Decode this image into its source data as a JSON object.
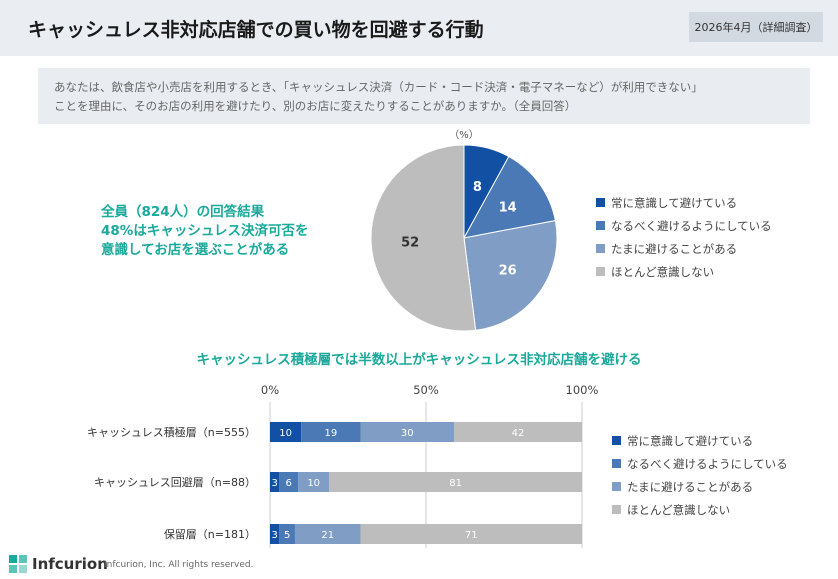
{
  "header": {
    "title": "キャッシュレス非対応店舗での買い物を回避する行動",
    "date_badge": "2026年4月（詳細調査）"
  },
  "question": {
    "line1": "あなたは、飲食店や小売店を利用するとき、「キャッシュレス決済（カード・コード決済・電子マネーなど）が利用できない」",
    "line2": "ことを理由に、そのお店の利用を避けたり、別のお店に変えたりすることがありますか。（全員回答）"
  },
  "summary": {
    "line1": "全員（824人）の回答結果",
    "line2": "48%はキャッシュレス決済可否を",
    "line3": "意識してお店を選ぶことがある"
  },
  "colors": {
    "accent": "#1aa99a",
    "series": [
      "#1150a3",
      "#4a79b5",
      "#7f9dc5",
      "#bdbdbd"
    ]
  },
  "chart_data": [
    {
      "type": "pie",
      "unit_label": "（%）",
      "labels": [
        "常に意識して避けている",
        "なるべく避けるようにしている",
        "たまに避けることがある",
        "ほとんど意識しない"
      ],
      "values": [
        8,
        14,
        26,
        52
      ],
      "legend_position": "right"
    },
    {
      "type": "bar",
      "stacked": true,
      "orientation": "horizontal",
      "title": "キャッシュレス積極層では半数以上がキャッシュレス非対応店舗を避ける",
      "categories": [
        "キャッシュレス積極層（n=555）",
        "キャッシュレス回避層（n=88）",
        "保留層（n=181）"
      ],
      "series": [
        {
          "name": "常に意識して避けている",
          "values": [
            10,
            3,
            3
          ]
        },
        {
          "name": "なるべく避けるようにしている",
          "values": [
            19,
            6,
            5
          ]
        },
        {
          "name": "たまに避けることがある",
          "values": [
            30,
            10,
            21
          ]
        },
        {
          "name": "ほとんど意識しない",
          "values": [
            42,
            81,
            71
          ]
        }
      ],
      "xlim": [
        0,
        100
      ],
      "x_ticks": [
        "0%",
        "50%",
        "100%"
      ],
      "grid": true,
      "legend_position": "right"
    }
  ],
  "footer": {
    "logo_text": "Infcurion",
    "copyright": "Infcurion, Inc.  All rights reserved."
  }
}
